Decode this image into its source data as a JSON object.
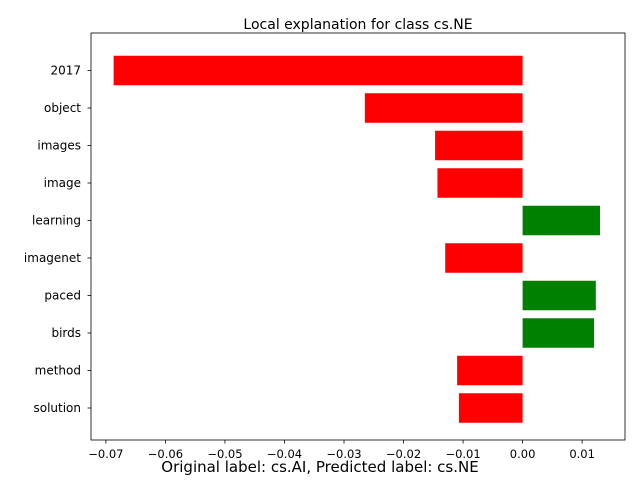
{
  "chart_data": {
    "type": "bar",
    "orientation": "horizontal",
    "title": "Local explanation for class cs.NE",
    "xlabel": "",
    "ylabel": "",
    "categories": [
      "2017",
      "object",
      "images",
      "image",
      "learning",
      "imagenet",
      "paced",
      "birds",
      "method",
      "solution"
    ],
    "values": [
      -0.0687,
      -0.0265,
      -0.0147,
      -0.0143,
      0.013,
      -0.013,
      0.0123,
      0.012,
      -0.011,
      -0.0107
    ],
    "bar_colors": [
      "#ff0000",
      "#ff0000",
      "#ff0000",
      "#ff0000",
      "#008000",
      "#ff0000",
      "#008000",
      "#008000",
      "#ff0000",
      "#ff0000"
    ],
    "xlim": [
      -0.0725,
      0.0172
    ],
    "xticks": [
      -0.07,
      -0.06,
      -0.05,
      -0.04,
      -0.03,
      -0.02,
      -0.01,
      0.0,
      0.01
    ],
    "xtick_labels": [
      "−0.07",
      "−0.06",
      "−0.05",
      "−0.04",
      "−0.03",
      "−0.02",
      "−0.01",
      "0.00",
      "0.01"
    ],
    "grid": false,
    "legend": "none",
    "colors": {
      "negative": "#ff0000",
      "positive": "#008000"
    }
  },
  "caption": "Original label: cs.AI, Predicted label: cs.NE"
}
